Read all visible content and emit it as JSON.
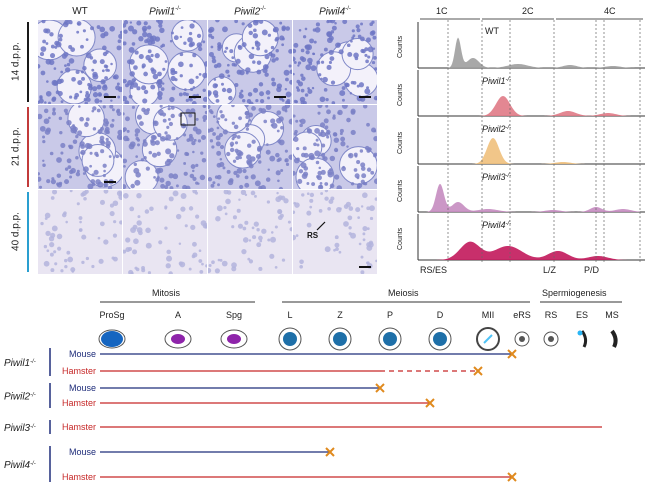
{
  "histology": {
    "columns": [
      {
        "name": "WT",
        "italic": false,
        "sup": ""
      },
      {
        "name": "Piwil1",
        "italic": true,
        "sup": "-/-"
      },
      {
        "name": "Piwil2",
        "italic": true,
        "sup": "-/-"
      },
      {
        "name": "Piwil4",
        "italic": true,
        "sup": "-/-"
      }
    ],
    "rows": [
      {
        "label": "14 d.p.p.",
        "color": "#1a1a1a",
        "tone": "#6f77c4"
      },
      {
        "label": "21 d.p.p.",
        "color": "#c23b3b",
        "tone": "#7a80c6"
      },
      {
        "label": "40 d.p.p.",
        "color": "#2a9fd0",
        "tone": "#b3b4dd"
      }
    ],
    "rs_label": "RS"
  },
  "flow": {
    "top_labels": [
      "1C",
      "2C",
      "4C"
    ],
    "ylabel": "Counts",
    "bottom_labels": [
      "RS/ES",
      "L/Z",
      "P/D"
    ],
    "panels": [
      {
        "name": "WT",
        "italic": false,
        "color": "#9e9e9e"
      },
      {
        "name": "Piwil1",
        "italic": true,
        "sup": "-/-",
        "color": "#e07a86"
      },
      {
        "name": "Piwil2",
        "italic": true,
        "sup": "-/-",
        "color": "#efc07c"
      },
      {
        "name": "Piwil3",
        "italic": true,
        "sup": "-/-",
        "color": "#c58cc0"
      },
      {
        "name": "Piwil4",
        "italic": true,
        "sup": "-/-",
        "color": "#c2185b"
      }
    ]
  },
  "stages": {
    "groups": [
      "Mitosis",
      "Meiosis",
      "Spermiogenesis"
    ],
    "labels": [
      "ProSg",
      "A",
      "Spg",
      "L",
      "Z",
      "P",
      "D",
      "MII",
      "eRS",
      "RS",
      "ES",
      "MS"
    ]
  },
  "timeline": {
    "colors": {
      "mouse": "#1f2d7a",
      "hamster": "#c62828",
      "arrest": "#e08a1e"
    },
    "genes": [
      {
        "gene": "Piwil1",
        "sup": "-/-",
        "lines": [
          {
            "species": "Mouse",
            "solid_to": "eRS",
            "dash_to": null,
            "arrest": "eRS"
          },
          {
            "species": "Hamster",
            "solid_to": "P",
            "dash_to": "MII",
            "arrest": "MII"
          }
        ]
      },
      {
        "gene": "Piwil2",
        "sup": "-/-",
        "lines": [
          {
            "species": "Mouse",
            "solid_to": "P",
            "dash_to": null,
            "arrest": "P"
          },
          {
            "species": "Hamster",
            "solid_to": "D",
            "dash_to": null,
            "arrest": "D"
          }
        ]
      },
      {
        "gene": "Piwil3",
        "sup": "-/-",
        "lines": [
          {
            "species": "Hamster",
            "solid_to": "MS",
            "dash_to": null,
            "arrest": null
          }
        ]
      },
      {
        "gene": "Piwil4",
        "sup": "-/-",
        "lines": [
          {
            "species": "Mouse",
            "solid_to": "Z",
            "dash_to": null,
            "arrest": "Z"
          },
          {
            "species": "Hamster",
            "solid_to": "eRS",
            "dash_to": null,
            "arrest": "eRS"
          }
        ]
      }
    ]
  }
}
